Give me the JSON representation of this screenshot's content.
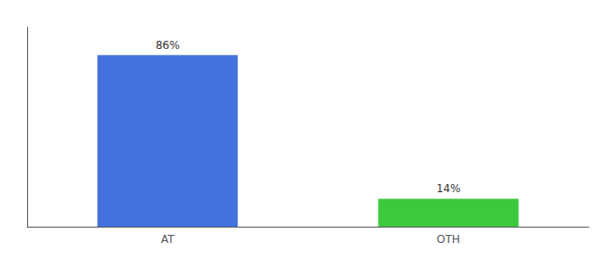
{
  "chart_data": {
    "type": "bar",
    "categories": [
      "AT",
      "OTH"
    ],
    "values": [
      86,
      14
    ],
    "value_labels": [
      "86%",
      "14%"
    ],
    "colors": [
      "#4472DD",
      "#3DC93D"
    ],
    "ylim": [
      0,
      100
    ],
    "data_labels": true,
    "tick_labels": "x",
    "grid": false
  }
}
